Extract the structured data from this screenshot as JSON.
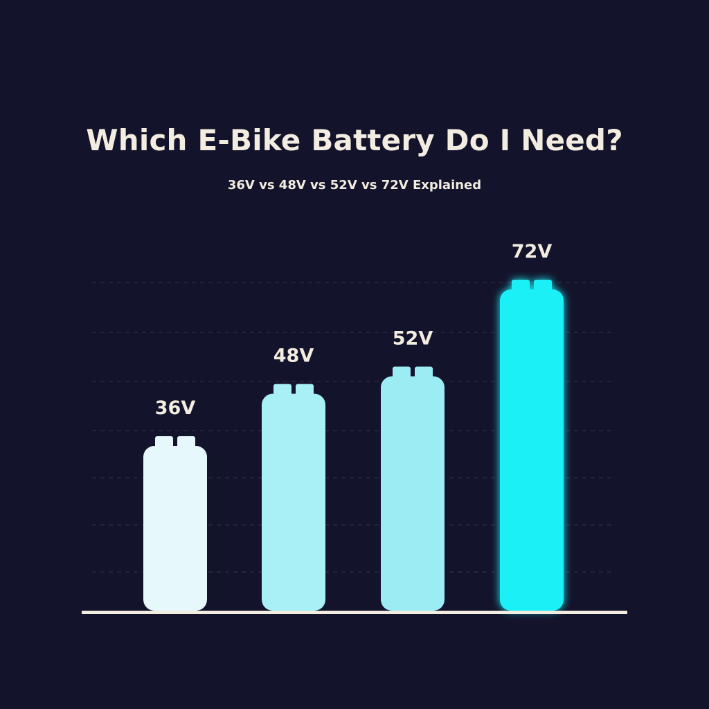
{
  "title": "Which E-Bike Battery Do I Need?",
  "subtitle": "36V vs 48V vs 52V vs 72V Explained",
  "colors": {
    "background": "#13132b",
    "text": "#f3ece0",
    "baseline": "#f3ece0",
    "gridline": "#3a3a5a"
  },
  "chart_data": {
    "type": "bar",
    "categories": [
      "36V",
      "48V",
      "52V",
      "72V"
    ],
    "values": [
      36,
      48,
      52,
      72
    ],
    "data_labels": [
      "36V",
      "48V",
      "52V",
      "72V"
    ],
    "bar_style": "battery",
    "bar_colors": [
      "#e6f8fc",
      "#a8f0f6",
      "#9cecf4",
      "#1ff0f7"
    ],
    "ylim": [
      0,
      72
    ],
    "grid": true,
    "xlabel": "",
    "ylabel": ""
  }
}
